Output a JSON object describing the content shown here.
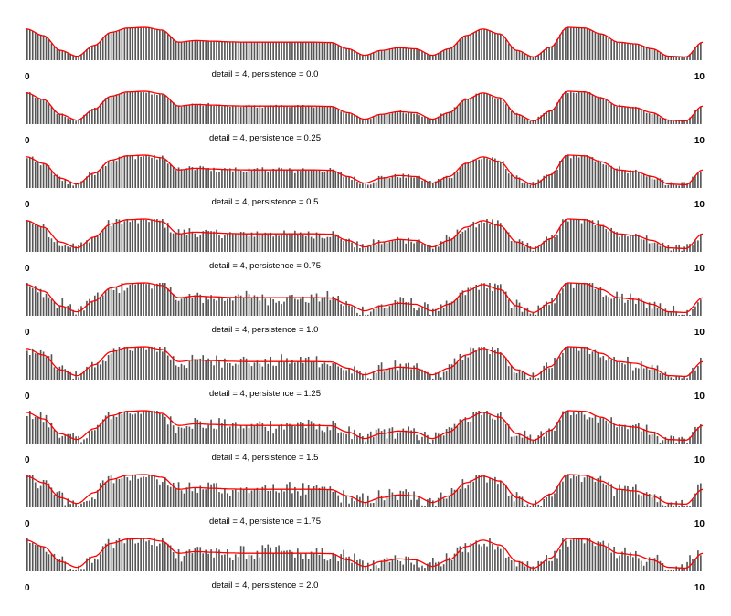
{
  "chart_data": {
    "type": "bar",
    "overlay": "line",
    "x_min": "0",
    "x_max": "10",
    "xlim": [
      0,
      10
    ],
    "bar_count": 250,
    "bar_color": "#555555",
    "line_color": "#ff0000",
    "grid": false,
    "legend": "none",
    "panels": [
      {
        "caption": "detail = 4, persistence = 0.0",
        "detail": 4,
        "persistence": 0.0
      },
      {
        "caption": "detail = 4, persistence = 0.25",
        "detail": 4,
        "persistence": 0.25
      },
      {
        "caption": "detail = 4, persistence = 0.5",
        "detail": 4,
        "persistence": 0.5
      },
      {
        "caption": "detail = 4, persistence = 0.75",
        "detail": 4,
        "persistence": 0.75
      },
      {
        "caption": "detail = 4, persistence = 1.0",
        "detail": 4,
        "persistence": 1.0
      },
      {
        "caption": "detail = 4, persistence = 1.25",
        "detail": 4,
        "persistence": 1.25
      },
      {
        "caption": "detail = 4, persistence = 1.5",
        "detail": 4,
        "persistence": 1.5
      },
      {
        "caption": "detail = 4, persistence = 1.75",
        "detail": 4,
        "persistence": 1.75
      },
      {
        "caption": "detail = 4, persistence = 2.0",
        "detail": 4,
        "persistence": 2.0
      }
    ],
    "base_curve": {
      "x": [
        0,
        0.25,
        0.5,
        0.75,
        1.0,
        1.25,
        1.5,
        1.75,
        2.0,
        2.25,
        2.5,
        2.75,
        3.0,
        3.25,
        3.5,
        3.75,
        4.0,
        4.25,
        4.5,
        4.75,
        5.0,
        5.25,
        5.5,
        5.75,
        6.0,
        6.25,
        6.5,
        6.75,
        7.0,
        7.25,
        7.5,
        7.75,
        8.0,
        8.25,
        8.5,
        8.75,
        9.0,
        9.25,
        9.5,
        9.75,
        10.0
      ],
      "y": [
        0.95,
        0.75,
        0.3,
        0.12,
        0.45,
        0.85,
        0.98,
        1.0,
        0.92,
        0.55,
        0.6,
        0.58,
        0.56,
        0.55,
        0.55,
        0.55,
        0.55,
        0.55,
        0.54,
        0.35,
        0.15,
        0.3,
        0.38,
        0.35,
        0.15,
        0.35,
        0.75,
        0.95,
        0.8,
        0.3,
        0.1,
        0.4,
        1.0,
        0.98,
        0.8,
        0.55,
        0.5,
        0.35,
        0.12,
        0.1,
        0.55
      ]
    }
  }
}
